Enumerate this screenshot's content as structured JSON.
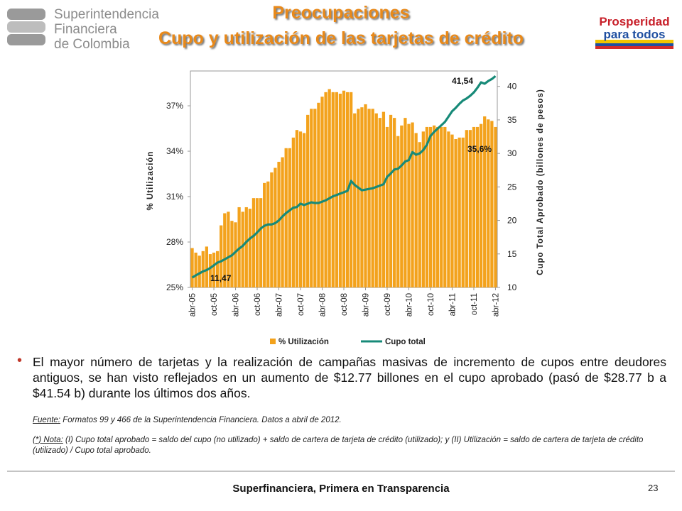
{
  "header": {
    "logo_lines": [
      "Superintendencia",
      "Financiera",
      "de Colombia"
    ],
    "title": "Preocupaciones",
    "subtitle": "Cupo y utilización de las tarjetas de crédito",
    "badge_lines": [
      "Prosperidad",
      "para todos"
    ]
  },
  "chart_data": {
    "type": "bar",
    "categories": [
      "abr-05",
      null,
      null,
      null,
      null,
      null,
      "oct-05",
      null,
      null,
      null,
      null,
      null,
      "abr-06",
      null,
      null,
      null,
      null,
      null,
      "oct-06",
      null,
      null,
      null,
      null,
      null,
      "abr-07",
      null,
      null,
      null,
      null,
      null,
      "oct-07",
      null,
      null,
      null,
      null,
      null,
      "abr-08",
      null,
      null,
      null,
      null,
      null,
      "oct-08",
      null,
      null,
      null,
      null,
      null,
      "abr-09",
      null,
      null,
      null,
      null,
      null,
      "oct-09",
      null,
      null,
      null,
      null,
      null,
      "abr-10",
      null,
      null,
      null,
      null,
      null,
      "oct-10",
      null,
      null,
      null,
      null,
      null,
      "abr-11",
      null,
      null,
      null,
      null,
      null,
      "oct-11",
      null,
      null,
      null,
      null,
      null,
      "abr-12"
    ],
    "series": [
      {
        "name": "% Utilización",
        "color": "#f3a21c",
        "type": "bar",
        "axis": "y",
        "values": [
          27.6,
          27.3,
          27.1,
          27.4,
          27.7,
          27.2,
          27.3,
          27.4,
          29.1,
          29.9,
          30.0,
          29.4,
          29.3,
          30.3,
          30.0,
          30.3,
          30.2,
          30.9,
          30.9,
          30.9,
          31.9,
          32.0,
          32.6,
          32.9,
          33.3,
          33.6,
          34.2,
          34.2,
          34.9,
          35.4,
          35.3,
          35.2,
          36.4,
          36.8,
          36.8,
          37.2,
          37.6,
          37.9,
          38.1,
          37.9,
          37.9,
          37.8,
          38.0,
          37.9,
          37.9,
          36.5,
          36.8,
          36.9,
          37.1,
          36.8,
          36.8,
          36.5,
          36.2,
          36.6,
          35.6,
          36.4,
          36.2,
          35.0,
          35.7,
          36.2,
          35.8,
          35.9,
          35.2,
          34.6,
          35.3,
          35.6,
          35.6,
          35.7,
          35.6,
          35.6,
          35.6,
          35.3,
          35.1,
          34.8,
          34.9,
          34.9,
          35.4,
          35.4,
          35.6,
          35.6,
          35.8,
          36.3,
          36.1,
          36.0,
          35.6
        ]
      },
      {
        "name": "Cupo total",
        "color": "#178a78",
        "type": "line",
        "axis": "y2",
        "values": [
          11.47,
          11.8,
          12.1,
          12.4,
          12.6,
          12.9,
          13.3,
          13.7,
          13.9,
          14.2,
          14.5,
          14.8,
          15.3,
          15.8,
          16.2,
          16.8,
          17.3,
          17.7,
          18.2,
          18.8,
          19.2,
          19.4,
          19.4,
          19.6,
          20.0,
          20.6,
          21.1,
          21.5,
          21.9,
          22.0,
          22.5,
          22.3,
          22.5,
          22.7,
          22.6,
          22.6,
          22.8,
          23.0,
          23.3,
          23.6,
          23.8,
          24.0,
          24.2,
          24.4,
          25.9,
          25.3,
          24.9,
          24.5,
          24.6,
          24.7,
          24.8,
          25.0,
          25.2,
          25.4,
          26.5,
          27.0,
          27.6,
          27.7,
          28.2,
          28.8,
          29.0,
          30.2,
          29.8,
          30.0,
          30.5,
          31.3,
          32.6,
          33.2,
          33.7,
          34.2,
          34.7,
          35.5,
          36.3,
          36.8,
          37.4,
          37.9,
          38.2,
          38.6,
          39.1,
          39.8,
          40.6,
          40.4,
          40.8,
          41.1,
          41.54
        ]
      }
    ],
    "ylabel": "% Utilización",
    "y2label": "Cupo Total Aprobado (billones de pesos)",
    "ylim": [
      25,
      39.3
    ],
    "yticks": [
      {
        "value": 25,
        "label": "25%"
      },
      {
        "value": 28,
        "label": "28%"
      },
      {
        "value": 31,
        "label": "31%"
      },
      {
        "value": 34,
        "label": "34%"
      },
      {
        "value": 37,
        "label": "37%"
      }
    ],
    "y2lim": [
      10,
      42.3
    ],
    "y2ticks": [
      10,
      15,
      20,
      25,
      30,
      35,
      40
    ],
    "annotations": [
      "41,54",
      "11,47",
      "35,6%"
    ],
    "legend": "bottom"
  },
  "bullet": "El mayor número de tarjetas y la realización de campañas masivas de incremento de cupos entre deudores antiguos, se han visto reflejados en un aumento de $12.77 billones en el cupo aprobado (pasó de $28.77 b a $41.54 b) durante los últimos dos años.",
  "source": {
    "label": "Fuente:",
    "text": " Formatos 99 y 466 de la Superintendencia Financiera. Datos a abril de 2012."
  },
  "note": {
    "label": "(*) Nota:",
    "text": " (I) Cupo total aprobado = saldo del cupo (no utilizado) + saldo de cartera de tarjeta de crédito (utilizado); y  (II)  Utilización = saldo de cartera de tarjeta de crédito (utilizado)  / Cupo total aprobado."
  },
  "footer": "Superfinanciera, Primera en Transparencia",
  "page_number": "23"
}
